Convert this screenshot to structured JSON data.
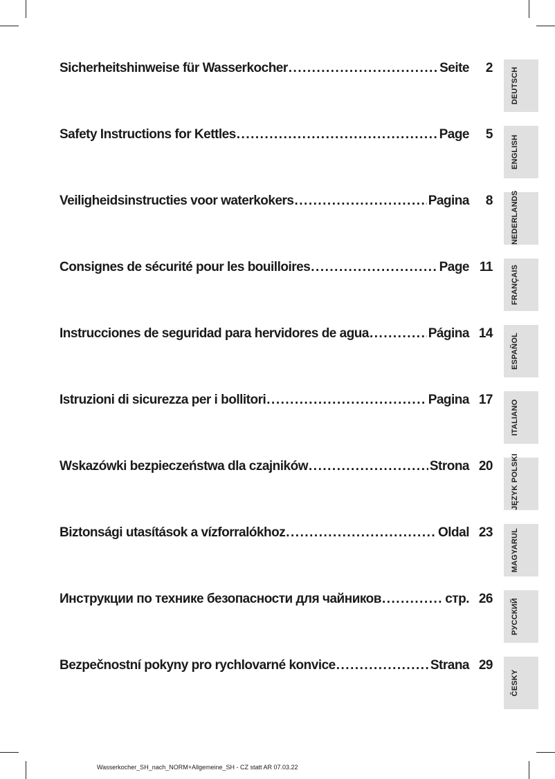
{
  "page": {
    "footer": "Wasserkocher_SH_nach_NORM+Allgemeine_SH - CZ statt AR  07.03.22"
  },
  "colors": {
    "tab_background": "#e0e0e0",
    "text": "#1a1a1a"
  },
  "toc": {
    "entries": [
      {
        "title": "Sicherheitshinweise für Wasserkocher",
        "page_word": "Seite",
        "page_number": "2",
        "language_tab": "DEUTSCH"
      },
      {
        "title": "Safety Instructions for Kettles",
        "page_word": "Page",
        "page_number": "5",
        "language_tab": "ENGLISH"
      },
      {
        "title": "Veiligheidsinstructies voor waterkokers",
        "page_word": "Pagina",
        "page_number": "8",
        "language_tab": "NEDERLANDS"
      },
      {
        "title": "Consignes de sécurité pour les bouilloires",
        "page_word": "Page",
        "page_number": "11",
        "language_tab": "FRANÇAIS"
      },
      {
        "title": "Instrucciones de seguridad para hervidores de agua",
        "page_word": "Página",
        "page_number": "14",
        "language_tab": "ESPAÑOL"
      },
      {
        "title": "Istruzioni di sicurezza per i bollitori",
        "page_word": "Pagina",
        "page_number": "17",
        "language_tab": "ITALIANO"
      },
      {
        "title": "Wskazówki bezpieczeństwa dla czajników",
        "page_word": "Strona",
        "page_number": "20",
        "language_tab": "JĘZYK POLSKI"
      },
      {
        "title": "Biztonsági utasítások a vízforralókhoz",
        "page_word": "Oldal",
        "page_number": "23",
        "language_tab": "MAGYARUL"
      },
      {
        "title": "Инструкции по технике безопасности для чайников",
        "page_word": "стр.",
        "page_number": "26",
        "language_tab": "РУССКИЙ"
      },
      {
        "title": "Bezpečnostní pokyny pro rychlovarné konvice",
        "page_word": "Strana",
        "page_number": "29",
        "language_tab": "ČESKY"
      }
    ]
  }
}
